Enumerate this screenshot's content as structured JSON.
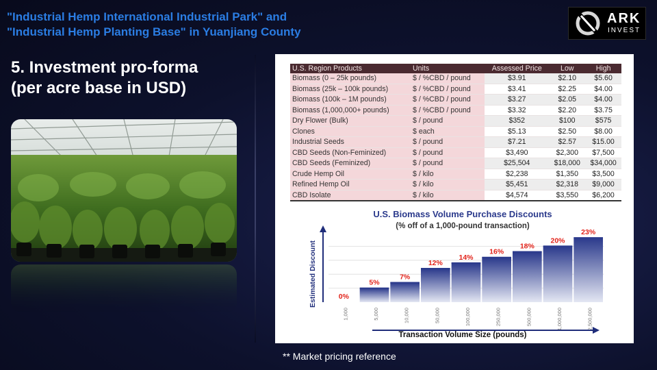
{
  "header": {
    "title_line1": "\"Industrial Hemp International Industrial Park\" and",
    "title_line2": "\"Industrial Hemp Planting Base\" in Yuanjiang County"
  },
  "logo": {
    "name": "ARK",
    "tagline": "INVEST"
  },
  "slide": {
    "subtitle_line1": "5. Investment pro-forma",
    "subtitle_line2": "(per acre base in USD)"
  },
  "photo": {
    "icon": "greenhouse-hemp-photo"
  },
  "pricing_table": {
    "headers": [
      "U.S. Region Products",
      "Units",
      "Assessed Price",
      "Low",
      "High"
    ],
    "rows": [
      {
        "product": "Biomass (0 – 25k pounds)",
        "unit": "$ / %CBD / pound",
        "assessed": "$3.91",
        "low": "$2.10",
        "high": "$5.60"
      },
      {
        "product": "Biomass (25k – 100k pounds)",
        "unit": "$ / %CBD / pound",
        "assessed": "$3.41",
        "low": "$2.25",
        "high": "$4.00"
      },
      {
        "product": "Biomass (100k – 1M pounds)",
        "unit": "$ / %CBD / pound",
        "assessed": "$3.27",
        "low": "$2.05",
        "high": "$4.00"
      },
      {
        "product": "Biomass (1,000,000+ pounds)",
        "unit": "$ / %CBD / pound",
        "assessed": "$3.32",
        "low": "$2.20",
        "high": "$3.75"
      },
      {
        "product": "Dry Flower (Bulk)",
        "unit": "$ / pound",
        "assessed": "$352",
        "low": "$100",
        "high": "$575"
      },
      {
        "product": "Clones",
        "unit": "$ each",
        "assessed": "$5.13",
        "low": "$2.50",
        "high": "$8.00"
      },
      {
        "product": "Industrial Seeds",
        "unit": "$ / pound",
        "assessed": "$7.21",
        "low": "$2.57",
        "high": "$15.00"
      },
      {
        "product": "CBD Seeds (Non-Feminized)",
        "unit": "$ / pound",
        "assessed": "$3,490",
        "low": "$2,300",
        "high": "$7,500"
      },
      {
        "product": "CBD Seeds (Feminized)",
        "unit": "$ / pound",
        "assessed": "$25,504",
        "low": "$18,000",
        "high": "$34,000"
      },
      {
        "product": "Crude Hemp Oil",
        "unit": "$ / kilo",
        "assessed": "$2,238",
        "low": "$1,350",
        "high": "$3,500"
      },
      {
        "product": "Refined Hemp Oil",
        "unit": "$ / kilo",
        "assessed": "$5,451",
        "low": "$2,318",
        "high": "$9,000"
      },
      {
        "product": "CBD Isolate",
        "unit": "$ / kilo",
        "assessed": "$4,574",
        "low": "$3,550",
        "high": "$6,200"
      }
    ]
  },
  "chart_data": {
    "type": "bar",
    "title": "U.S. Biomass Volume Purchase Discounts",
    "subtitle": "(% off of a 1,000-pound transaction)",
    "xlabel": "Transaction Volume Size (pounds)",
    "ylabel": "Estimated Discount",
    "categories": [
      "1,000",
      "5,000",
      "10,000",
      "50,000",
      "100,000",
      "250,000",
      "500,000",
      "1,000,000",
      "2,500,000"
    ],
    "values": [
      0,
      5,
      7,
      12,
      14,
      16,
      18,
      20,
      23
    ],
    "value_labels": [
      "0%",
      "5%",
      "7%",
      "12%",
      "14%",
      "16%",
      "18%",
      "20%",
      "23%"
    ],
    "ylim": [
      0,
      25
    ],
    "grid": true,
    "colors": {
      "bar_top": "#2b3a8c",
      "bar_bottom": "#e4e7f3",
      "label": "#e2231a",
      "title": "#2b3a8c"
    }
  },
  "footnote": "** Market pricing reference"
}
